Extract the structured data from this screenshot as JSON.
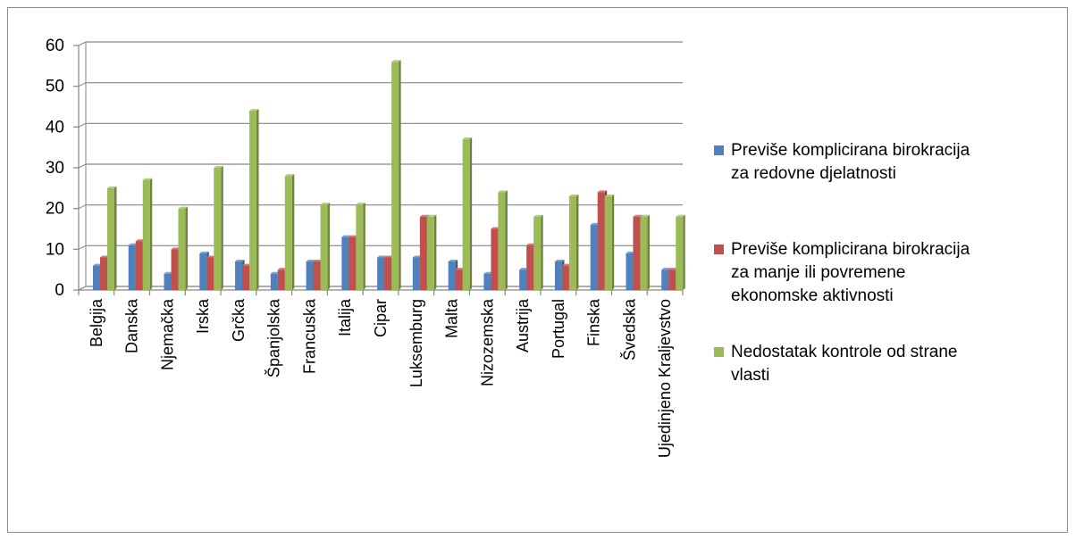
{
  "chart_data": {
    "type": "bar",
    "categories": [
      "Belgija",
      "Danska",
      "Njemačka",
      "Irska",
      "Grčka",
      "Španjolska",
      "Francuska",
      "Italija",
      "Cipar",
      "Luksemburg",
      "Malta",
      "Nizozemska",
      "Austrija",
      "Portugal",
      "Finska",
      "Švedska",
      "Ujedinjeno Kraljevstvo"
    ],
    "series": [
      {
        "name": "Previše komplicirana birokracija za redovne djelatnosti",
        "values": [
          6,
          11,
          4,
          9,
          7,
          4,
          7,
          13,
          8,
          8,
          7,
          4,
          5,
          7,
          16,
          9,
          5
        ]
      },
      {
        "name": "Previše komplicirana birokracija za manje ili povremene ekonomske aktivnosti",
        "values": [
          8,
          12,
          10,
          8,
          6,
          5,
          7,
          13,
          8,
          18,
          5,
          15,
          11,
          6,
          24,
          18,
          5
        ]
      },
      {
        "name": "Nedostatak kontrole od strane vlasti",
        "values": [
          25,
          27,
          20,
          30,
          44,
          28,
          21,
          21,
          56,
          18,
          37,
          24,
          18,
          23,
          23,
          18,
          18
        ]
      }
    ],
    "ylim": [
      0,
      60
    ],
    "yticks": [
      0,
      10,
      20,
      30,
      40,
      50,
      60
    ],
    "grid": true,
    "legend_position": "right",
    "colors": [
      "#4F81BD",
      "#C0504D",
      "#9BBB59"
    ],
    "legend_labels": [
      [
        "Previše komplicirana birokracija",
        "za redovne djelatnosti"
      ],
      [
        "Previše komplicirana birokracija",
        "za manje ili povremene",
        "ekonomske aktivnosti"
      ],
      [
        "Nedostatak kontrole od strane",
        "vlasti"
      ]
    ]
  }
}
